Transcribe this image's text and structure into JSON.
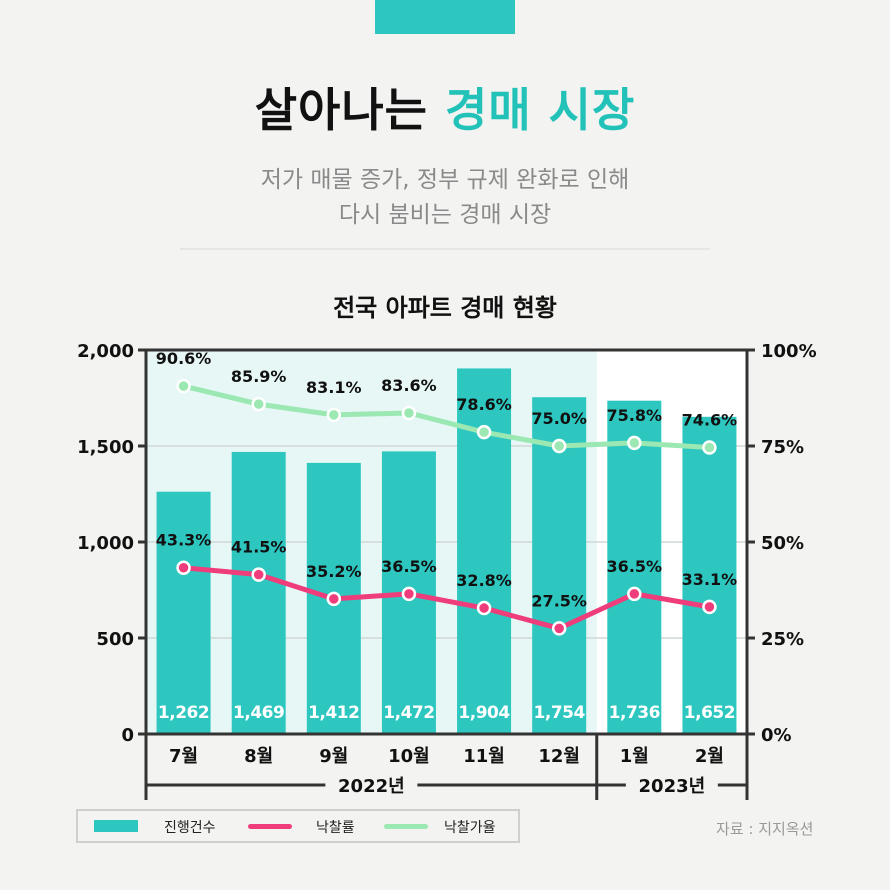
{
  "header": {
    "headline_black": "살아나는",
    "headline_accent": "경매 시장",
    "subtitle_line1": "저가 매물 증가, 정부 규제 완화로 인해",
    "subtitle_line2": "다시 붐비는 경매 시장"
  },
  "colors": {
    "accent": "#2ec7c0",
    "bar": "#2ec7c0",
    "rate_line": "#ee3d7a",
    "price_line": "#9be8b2",
    "shade_2022": "#e6f7f6"
  },
  "chart_data": {
    "type": "bar",
    "title": "전국 아파트 경매 현황",
    "categories": [
      "7월",
      "8월",
      "9월",
      "10월",
      "11월",
      "12월",
      "1월",
      "2월"
    ],
    "year_groups": [
      {
        "label": "2022년",
        "months": 6
      },
      {
        "label": "2023년",
        "months": 2
      }
    ],
    "y_left": {
      "min": 0,
      "max": 2000,
      "ticks": [
        0,
        500,
        1000,
        1500,
        2000
      ],
      "tick_labels": [
        "0",
        "500",
        "1,000",
        "1,500",
        "2,000"
      ]
    },
    "y_right": {
      "min": 0,
      "max": 100,
      "ticks": [
        0,
        25,
        50,
        75,
        100
      ],
      "tick_labels": [
        "0%",
        "25%",
        "50%",
        "75%",
        "100%"
      ]
    },
    "series": [
      {
        "name": "진행건수",
        "kind": "bar",
        "axis": "left",
        "values": [
          1262,
          1469,
          1412,
          1472,
          1904,
          1754,
          1736,
          1652
        ],
        "labels": [
          "1,262",
          "1,469",
          "1,412",
          "1,472",
          "1,904",
          "1,754",
          "1,736",
          "1,652"
        ]
      },
      {
        "name": "낙찰률",
        "kind": "line",
        "axis": "right",
        "values": [
          43.3,
          41.5,
          35.2,
          36.5,
          32.8,
          27.5,
          36.5,
          33.1
        ],
        "labels": [
          "43.3%",
          "41.5%",
          "35.2%",
          "36.5%",
          "32.8%",
          "27.5%",
          "36.5%",
          "33.1%"
        ]
      },
      {
        "name": "낙찰가율",
        "kind": "line",
        "axis": "right",
        "values": [
          90.6,
          85.9,
          83.1,
          83.6,
          78.6,
          75.0,
          75.8,
          74.6
        ],
        "labels": [
          "90.6%",
          "85.9%",
          "83.1%",
          "83.6%",
          "78.6%",
          "75.0%",
          "75.8%",
          "74.6%"
        ]
      }
    ]
  },
  "legend": {
    "bar_label": "진행건수",
    "rate_label": "낙찰률",
    "price_label": "낙찰가율"
  },
  "source": "자료 : 지지옥션"
}
